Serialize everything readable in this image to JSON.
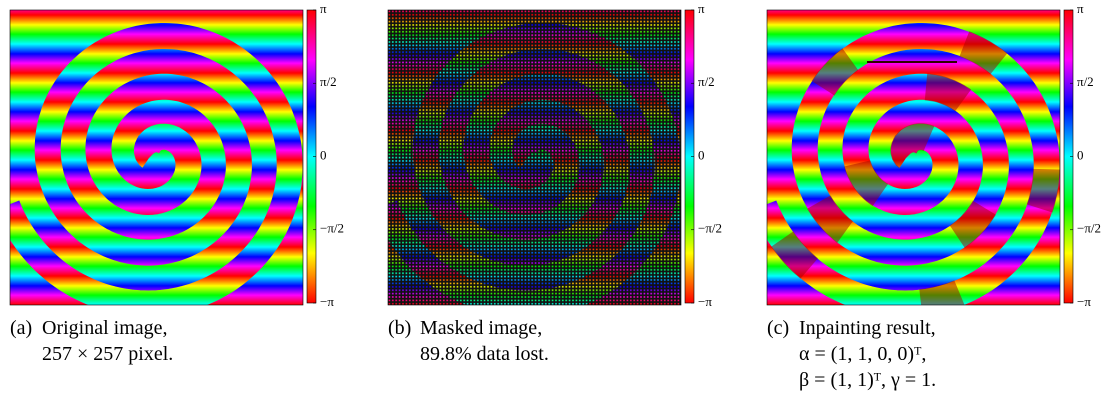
{
  "panels": [
    {
      "colorbar_ticks": [
        "π",
        "π/2",
        "0",
        "−π/2",
        "−π"
      ],
      "caption": {
        "label": "(a)",
        "lines": [
          "Original image,",
          "257 × 257 pixel."
        ]
      }
    },
    {
      "colorbar_ticks": [
        "π",
        "π/2",
        "0",
        "−π/2",
        "−π"
      ],
      "caption": {
        "label": "(b)",
        "lines": [
          "Masked image,",
          "89.8% data lost."
        ]
      }
    },
    {
      "colorbar_ticks": [
        "π",
        "π/2",
        "0",
        "−π/2",
        "−π"
      ],
      "caption": {
        "label": "(c)",
        "lines": [
          "Inpainting result,",
          "α = (1, 1, 0, 0)ᵀ,",
          "β = (1, 1)ᵀ, γ = 1."
        ]
      }
    }
  ]
}
